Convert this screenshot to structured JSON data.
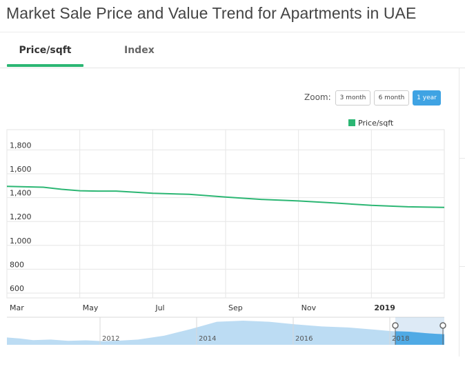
{
  "page": {
    "title": "Market Sale Price and Value Trend for Apartments in UAE"
  },
  "tabs": [
    {
      "label": "Price/sqft",
      "active": true
    },
    {
      "label": "Index",
      "active": false
    }
  ],
  "zoom": {
    "label": "Zoom:",
    "options": [
      "3 month",
      "6 month",
      "1 year"
    ],
    "selected": "1 year"
  },
  "colors": {
    "series": "#2bb673",
    "accent": "#3fa3e3",
    "navigator": "#bcdcf3"
  },
  "chart_data": {
    "type": "line",
    "legend": {
      "label": "Price/sqft",
      "position": "top-right"
    },
    "ylim": [
      600,
      1800
    ],
    "y_ticks": [
      "600",
      "800",
      "1,000",
      "1,200",
      "1,400",
      "1,600",
      "1,800"
    ],
    "x_ticks": [
      "Mar",
      "May",
      "Jul",
      "Sep",
      "Nov",
      "2019"
    ],
    "x_range": [
      0,
      12
    ],
    "series": [
      {
        "name": "Price/sqft",
        "x": [
          0,
          1,
          1.5,
          2,
          2.5,
          3,
          4,
          5,
          6,
          7,
          8,
          9,
          10,
          11,
          12
        ],
        "values": [
          1495,
          1487,
          1470,
          1458,
          1455,
          1455,
          1437,
          1428,
          1405,
          1385,
          1372,
          1355,
          1335,
          1323,
          1318
        ]
      }
    ],
    "navigator": {
      "x_labels": [
        "2012",
        "2014",
        "2016",
        "2018"
      ],
      "selected_range": "2018 - 2019"
    }
  }
}
